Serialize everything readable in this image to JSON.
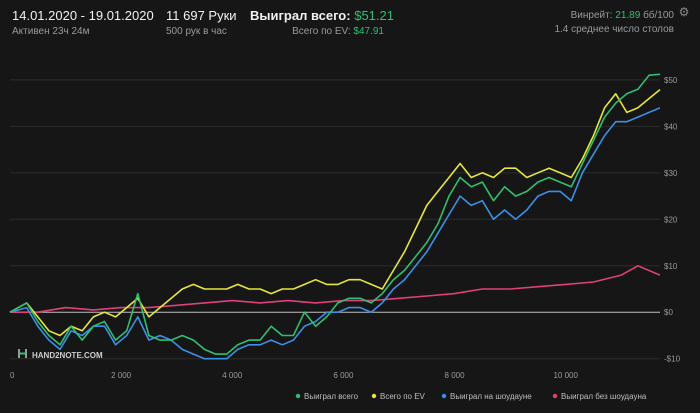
{
  "header": {
    "date_range": "14.01.2020 - 19.01.2020",
    "active": "Активен 23ч 24м",
    "hands": "11 697 Руки",
    "hands_per_hour": "500 рук в час",
    "won_label": "Выиграл всего:",
    "won_value": "$51.21",
    "ev_label": "Всего по EV:",
    "ev_value": "$47.91",
    "winrate_label": "Винрейт:",
    "winrate_value": "21.89",
    "winrate_unit": "бб/100",
    "tables": "1.4 среднее число столов",
    "settings_icon": "gear-icon"
  },
  "watermark": {
    "text": "HAND2NOTE.COM",
    "logo_icon": "hand2note-logo"
  },
  "chart_data": {
    "type": "line",
    "title": "",
    "xlabel": "",
    "ylabel": "",
    "xlim": [
      0,
      11697
    ],
    "ylim": [
      -12,
      56
    ],
    "x_ticks": [
      0,
      2000,
      4000,
      6000,
      8000,
      10000
    ],
    "x_tick_labels": [
      "0",
      "2 000",
      "4 000",
      "6 000",
      "8 000",
      "10 000"
    ],
    "y_ticks": [
      -10,
      0,
      10,
      20,
      30,
      40,
      50
    ],
    "y_tick_labels": [
      "-$10",
      "$0",
      "$10",
      "$20",
      "$30",
      "$40",
      "$50"
    ],
    "grid": true,
    "legend_position": "bottom-right",
    "series": [
      {
        "name": "Выиграл всего",
        "color": "#2fbf71",
        "x": [
          0,
          300,
          500,
          700,
          900,
          1100,
          1300,
          1500,
          1700,
          1900,
          2100,
          2300,
          2500,
          2700,
          2900,
          3100,
          3300,
          3500,
          3700,
          3900,
          4100,
          4300,
          4500,
          4700,
          4900,
          5100,
          5300,
          5500,
          5700,
          5900,
          6100,
          6300,
          6500,
          6700,
          6900,
          7100,
          7300,
          7500,
          7700,
          7900,
          8100,
          8300,
          8500,
          8700,
          8900,
          9100,
          9300,
          9500,
          9700,
          9900,
          10100,
          10300,
          10500,
          10700,
          10900,
          11100,
          11300,
          11500,
          11697
        ],
        "y": [
          0,
          2,
          -2,
          -5,
          -7,
          -3,
          -6,
          -3,
          -2,
          -6,
          -4,
          4,
          -5,
          -6,
          -6,
          -5,
          -6,
          -8,
          -9,
          -9,
          -7,
          -6,
          -6,
          -3,
          -5,
          -5,
          0,
          -3,
          -1,
          2,
          3,
          3,
          2,
          4,
          7,
          9,
          12,
          15,
          19,
          25,
          29,
          27,
          28,
          24,
          27,
          25,
          26,
          28,
          29,
          28,
          27,
          32,
          37,
          42,
          45,
          47,
          48,
          51,
          51.2
        ]
      },
      {
        "name": "Всего по EV",
        "color": "#e6e63c",
        "x": [
          0,
          300,
          500,
          700,
          900,
          1100,
          1300,
          1500,
          1700,
          1900,
          2100,
          2300,
          2500,
          2700,
          2900,
          3100,
          3300,
          3500,
          3700,
          3900,
          4100,
          4300,
          4500,
          4700,
          4900,
          5100,
          5300,
          5500,
          5700,
          5900,
          6100,
          6300,
          6500,
          6700,
          6900,
          7100,
          7300,
          7500,
          7700,
          7900,
          8100,
          8300,
          8500,
          8700,
          8900,
          9100,
          9300,
          9500,
          9700,
          9900,
          10100,
          10300,
          10500,
          10700,
          10900,
          11100,
          11300,
          11500,
          11697
        ],
        "y": [
          0,
          2,
          -1,
          -4,
          -5,
          -3,
          -4,
          -1,
          0,
          -1,
          1,
          3,
          -1,
          1,
          3,
          5,
          6,
          5,
          5,
          5,
          6,
          5,
          5,
          4,
          5,
          5,
          6,
          7,
          6,
          6,
          7,
          7,
          6,
          5,
          9,
          13,
          18,
          23,
          26,
          29,
          32,
          29,
          30,
          29,
          31,
          31,
          29,
          30,
          31,
          30,
          29,
          33,
          38,
          44,
          47,
          43,
          44,
          46,
          47.9
        ]
      },
      {
        "name": "Выиграл на шоудауне",
        "color": "#3c8fe6",
        "x": [
          0,
          300,
          500,
          700,
          900,
          1100,
          1300,
          1500,
          1700,
          1900,
          2100,
          2300,
          2500,
          2700,
          2900,
          3100,
          3300,
          3500,
          3700,
          3900,
          4100,
          4300,
          4500,
          4700,
          4900,
          5100,
          5300,
          5500,
          5700,
          5900,
          6100,
          6300,
          6500,
          6700,
          6900,
          7100,
          7300,
          7500,
          7700,
          7900,
          8100,
          8300,
          8500,
          8700,
          8900,
          9100,
          9300,
          9500,
          9700,
          9900,
          10100,
          10300,
          10500,
          10700,
          10900,
          11100,
          11300,
          11500,
          11697
        ],
        "y": [
          0,
          1,
          -3,
          -6,
          -8,
          -4,
          -5,
          -3,
          -3,
          -7,
          -5,
          -1,
          -6,
          -5,
          -6,
          -8,
          -9,
          -10,
          -10,
          -10,
          -8,
          -7,
          -7,
          -6,
          -7,
          -6,
          -3,
          -2,
          0,
          0,
          1,
          1,
          0,
          2,
          5,
          7,
          10,
          13,
          17,
          21,
          25,
          23,
          24,
          20,
          22,
          20,
          22,
          25,
          26,
          26,
          24,
          30,
          34,
          38,
          41,
          41,
          42,
          43,
          44
        ]
      },
      {
        "name": "Выиграл без шоудауна",
        "color": "#e0407a",
        "x": [
          0,
          500,
          1000,
          1500,
          2000,
          2500,
          3000,
          3500,
          4000,
          4500,
          5000,
          5500,
          6000,
          6500,
          7000,
          7500,
          8000,
          8500,
          9000,
          9500,
          10000,
          10500,
          11000,
          11300,
          11697
        ],
        "y": [
          0,
          0,
          1,
          0.5,
          1,
          1,
          1.5,
          2,
          2.5,
          2,
          2.5,
          2,
          2.5,
          2.5,
          3,
          3.5,
          4,
          5,
          5,
          5.5,
          6,
          6.5,
          8,
          10,
          8
        ]
      }
    ]
  }
}
